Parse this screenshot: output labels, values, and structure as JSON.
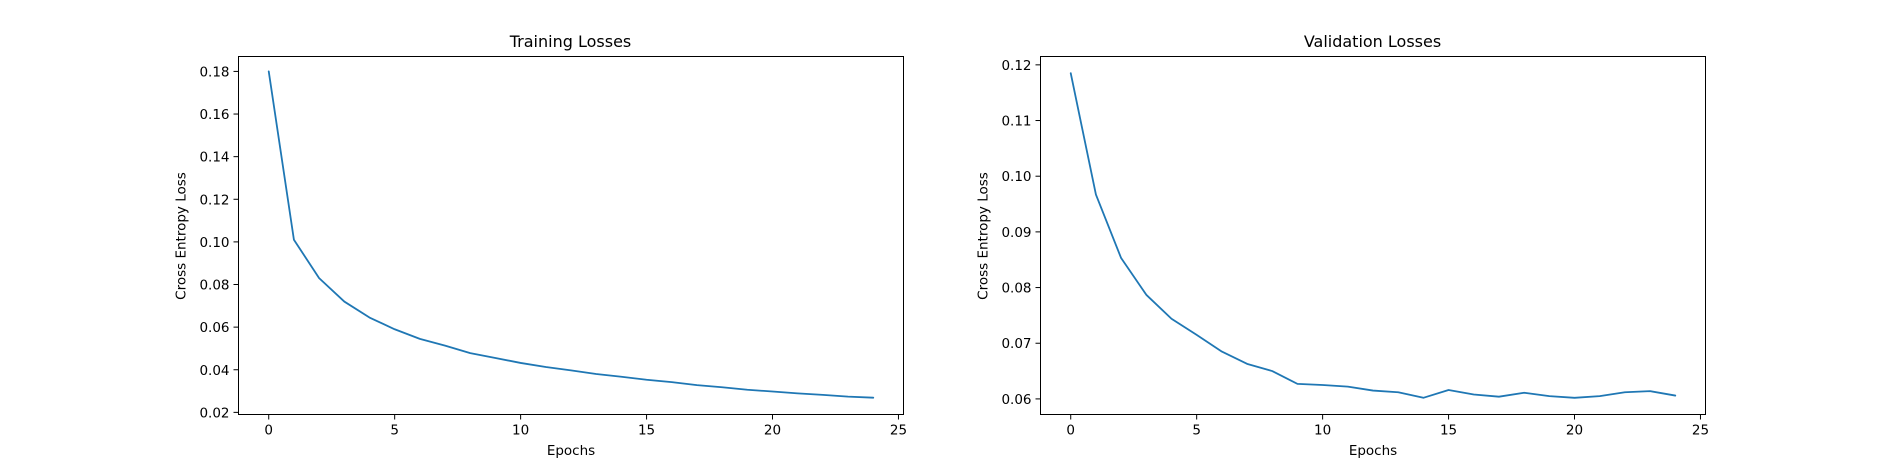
{
  "chart_data": [
    {
      "type": "line",
      "title": "Training Losses",
      "xlabel": "Epochs",
      "ylabel": "Cross Entropy Loss",
      "xlim": [
        -1.2,
        25.2
      ],
      "ylim": [
        0.019,
        0.187
      ],
      "xticks": [
        0,
        5,
        10,
        15,
        20,
        25
      ],
      "xtick_labels": [
        "0",
        "5",
        "10",
        "15",
        "20",
        "25"
      ],
      "yticks": [
        0.02,
        0.04,
        0.06,
        0.08,
        0.1,
        0.12,
        0.14,
        0.16,
        0.18
      ],
      "ytick_labels": [
        "0.02",
        "0.04",
        "0.06",
        "0.08",
        "0.10",
        "0.12",
        "0.14",
        "0.16",
        "0.18"
      ],
      "grid": false,
      "series": [
        {
          "color": "#1f77b4",
          "x": [
            0,
            1,
            2,
            3,
            4,
            5,
            6,
            7,
            8,
            9,
            10,
            11,
            12,
            13,
            14,
            15,
            16,
            17,
            18,
            19,
            20,
            21,
            22,
            23,
            24
          ],
          "y": [
            0.18,
            0.101,
            0.083,
            0.072,
            0.0645,
            0.059,
            0.0545,
            0.0513,
            0.0478,
            0.0455,
            0.0432,
            0.0413,
            0.0397,
            0.038,
            0.0367,
            0.0353,
            0.0342,
            0.0328,
            0.0318,
            0.0306,
            0.0298,
            0.0289,
            0.0282,
            0.0274,
            0.0269
          ]
        }
      ]
    },
    {
      "type": "line",
      "title": "Validation Losses",
      "xlabel": "Epochs",
      "ylabel": "Cross Entropy Loss",
      "xlim": [
        -1.2,
        25.2
      ],
      "ylim": [
        0.0572,
        0.1215
      ],
      "xticks": [
        0,
        5,
        10,
        15,
        20,
        25
      ],
      "xtick_labels": [
        "0",
        "5",
        "10",
        "15",
        "20",
        "25"
      ],
      "yticks": [
        0.06,
        0.07,
        0.08,
        0.09,
        0.1,
        0.11,
        0.12
      ],
      "ytick_labels": [
        "0.06",
        "0.07",
        "0.08",
        "0.09",
        "0.10",
        "0.11",
        "0.12"
      ],
      "grid": false,
      "series": [
        {
          "color": "#1f77b4",
          "x": [
            0,
            1,
            2,
            3,
            4,
            5,
            6,
            7,
            8,
            9,
            10,
            11,
            12,
            13,
            14,
            15,
            16,
            17,
            18,
            19,
            20,
            21,
            22,
            23,
            24
          ],
          "y": [
            0.1185,
            0.0967,
            0.0853,
            0.0787,
            0.0744,
            0.0715,
            0.0685,
            0.0663,
            0.065,
            0.0627,
            0.0625,
            0.0622,
            0.0615,
            0.0612,
            0.0602,
            0.0616,
            0.0608,
            0.0604,
            0.0611,
            0.0605,
            0.0602,
            0.0605,
            0.0612,
            0.0614,
            0.0606
          ]
        }
      ]
    }
  ]
}
